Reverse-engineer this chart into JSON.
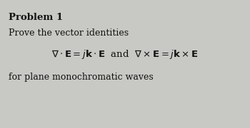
{
  "background_color": "#c8c8c4",
  "title": "Problem 1",
  "title_fontsize": 9.5,
  "title_fontweight": "bold",
  "line1": "Prove the vector identities",
  "line1_fontsize": 9,
  "line2_latex": "$\\nabla \\cdot \\mathbf{E} = j\\mathbf{k} \\cdot \\mathbf{E}$  and  $\\nabla \\times \\mathbf{E} = j\\mathbf{k} \\times \\mathbf{E}$",
  "line2_fontsize": 9.5,
  "line3": "for plane monochromatic waves",
  "line3_fontsize": 9,
  "text_color": "#111111",
  "fig_width": 3.5,
  "fig_height": 1.8,
  "dpi": 100
}
